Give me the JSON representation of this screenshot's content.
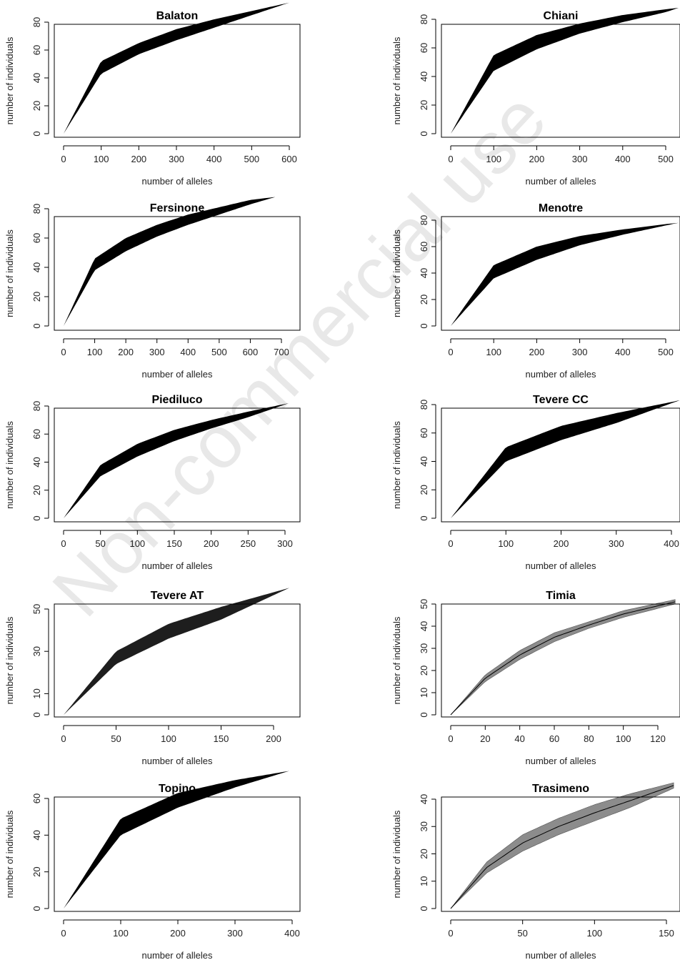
{
  "watermark": "Non-commercial use",
  "chart_data": [
    {
      "type": "area",
      "title": "Balaton",
      "xlabel": "number of alleles",
      "ylabel": "number of individuals",
      "xlim": [
        0,
        600
      ],
      "ylim": [
        0,
        94
      ],
      "xticks": [
        0,
        100,
        200,
        300,
        400,
        500,
        600
      ],
      "yticks": [
        0,
        20,
        40,
        60,
        80
      ],
      "series": [
        {
          "x": [
            0,
            100,
            200,
            300,
            400,
            500,
            600
          ],
          "lower": [
            0,
            43,
            57,
            67,
            76,
            85,
            94
          ],
          "upper": [
            0,
            52,
            65,
            75,
            82,
            88,
            94
          ]
        }
      ]
    },
    {
      "type": "area",
      "title": "Chiani",
      "xlabel": "number of alleles",
      "ylabel": "number of individuals",
      "xlim": [
        0,
        530
      ],
      "ylim": [
        0,
        88
      ],
      "xticks": [
        0,
        100,
        200,
        300,
        400,
        500
      ],
      "yticks": [
        0,
        20,
        40,
        60,
        80
      ],
      "series": [
        {
          "x": [
            0,
            100,
            200,
            300,
            400,
            500,
            530
          ],
          "lower": [
            0,
            44,
            59,
            70,
            78,
            85,
            88
          ],
          "upper": [
            0,
            55,
            69,
            77,
            83,
            87,
            88
          ]
        }
      ]
    },
    {
      "type": "area",
      "title": "Fersinone",
      "xlabel": "number of alleles",
      "ylabel": "number of individuals",
      "xlim": [
        0,
        680
      ],
      "ylim": [
        0,
        88
      ],
      "xticks": [
        0,
        100,
        200,
        300,
        400,
        500,
        600,
        700
      ],
      "yticks": [
        0,
        20,
        40,
        60,
        80
      ],
      "series": [
        {
          "x": [
            0,
            100,
            200,
            300,
            400,
            500,
            600,
            680
          ],
          "lower": [
            0,
            38,
            51,
            61,
            69,
            76,
            83,
            88
          ],
          "upper": [
            0,
            46,
            60,
            69,
            76,
            81,
            86,
            88
          ]
        }
      ]
    },
    {
      "type": "area",
      "title": "Menotre",
      "xlabel": "number of alleles",
      "ylabel": "number of individuals",
      "xlim": [
        0,
        530
      ],
      "ylim": [
        0,
        78
      ],
      "xticks": [
        0,
        100,
        200,
        300,
        400,
        500
      ],
      "yticks": [
        0,
        20,
        40,
        60,
        80
      ],
      "series": [
        {
          "x": [
            0,
            100,
            200,
            300,
            400,
            500,
            530
          ],
          "lower": [
            0,
            36,
            50,
            61,
            69,
            76,
            78
          ],
          "upper": [
            0,
            46,
            60,
            68,
            73,
            77,
            78
          ]
        }
      ]
    },
    {
      "type": "area",
      "title": "Piediluco",
      "xlabel": "number of alleles",
      "ylabel": "number of individuals",
      "xlim": [
        0,
        305
      ],
      "ylim": [
        0,
        82
      ],
      "xticks": [
        0,
        50,
        100,
        150,
        200,
        250,
        300
      ],
      "yticks": [
        0,
        20,
        40,
        60,
        80
      ],
      "series": [
        {
          "x": [
            0,
            50,
            100,
            150,
            200,
            250,
            305
          ],
          "lower": [
            0,
            30,
            44,
            55,
            64,
            72,
            82
          ],
          "upper": [
            0,
            38,
            53,
            63,
            70,
            76,
            82
          ]
        }
      ]
    },
    {
      "type": "area",
      "title": "Tevere CC",
      "xlabel": "number of alleles",
      "ylabel": "number of individuals",
      "xlim": [
        0,
        415
      ],
      "ylim": [
        0,
        83
      ],
      "xticks": [
        0,
        100,
        200,
        300,
        400
      ],
      "yticks": [
        0,
        20,
        40,
        60,
        80
      ],
      "series": [
        {
          "x": [
            0,
            100,
            200,
            300,
            415
          ],
          "lower": [
            0,
            40,
            55,
            67,
            83
          ],
          "upper": [
            0,
            50,
            65,
            74,
            83
          ]
        }
      ]
    },
    {
      "type": "area",
      "title": "Tevere AT",
      "xlabel": "number of alleles",
      "ylabel": "number of individuals",
      "xlim": [
        0,
        215
      ],
      "ylim": [
        0,
        60
      ],
      "xticks": [
        0,
        50,
        100,
        150,
        200
      ],
      "yticks": [
        0,
        10,
        30,
        50
      ],
      "series": [
        {
          "x": [
            0,
            50,
            100,
            150,
            215
          ],
          "lower": [
            0,
            24,
            36,
            45,
            60
          ],
          "upper": [
            0,
            30,
            43,
            51,
            60
          ]
        }
      ]
    },
    {
      "type": "area",
      "title": "Timia",
      "xlabel": "number of alleles",
      "ylabel": "number of individuals",
      "xlim": [
        0,
        130
      ],
      "ylim": [
        0,
        51
      ],
      "xticks": [
        0,
        20,
        40,
        60,
        80,
        100,
        120
      ],
      "yticks": [
        0,
        10,
        20,
        30,
        40,
        50
      ],
      "series": [
        {
          "x": [
            0,
            20,
            40,
            60,
            80,
            100,
            130
          ],
          "lower": [
            0,
            15,
            25,
            33,
            39,
            44,
            50
          ],
          "upper": [
            0,
            18,
            29,
            37,
            42,
            47,
            52
          ]
        }
      ]
    },
    {
      "type": "area",
      "title": "Topino",
      "xlabel": "number of alleles",
      "ylabel": "number of individuals",
      "xlim": [
        0,
        395
      ],
      "ylim": [
        0,
        75
      ],
      "xticks": [
        0,
        100,
        200,
        300,
        400
      ],
      "yticks": [
        0,
        20,
        40,
        60
      ],
      "series": [
        {
          "x": [
            0,
            100,
            200,
            300,
            395
          ],
          "lower": [
            0,
            40,
            55,
            66,
            75
          ],
          "upper": [
            0,
            49,
            63,
            70,
            75
          ]
        }
      ]
    },
    {
      "type": "area",
      "title": "Trasimeno",
      "xlabel": "number of alleles",
      "ylabel": "number of individuals",
      "xlim": [
        0,
        155
      ],
      "ylim": [
        0,
        45
      ],
      "xticks": [
        0,
        50,
        100,
        150
      ],
      "yticks": [
        0,
        10,
        20,
        30,
        40
      ],
      "series": [
        {
          "x": [
            0,
            25,
            50,
            75,
            100,
            125,
            155
          ],
          "lower": [
            0,
            13,
            21,
            27,
            32,
            37,
            44
          ],
          "upper": [
            0,
            17,
            27,
            33,
            38,
            42,
            46
          ]
        }
      ]
    }
  ]
}
